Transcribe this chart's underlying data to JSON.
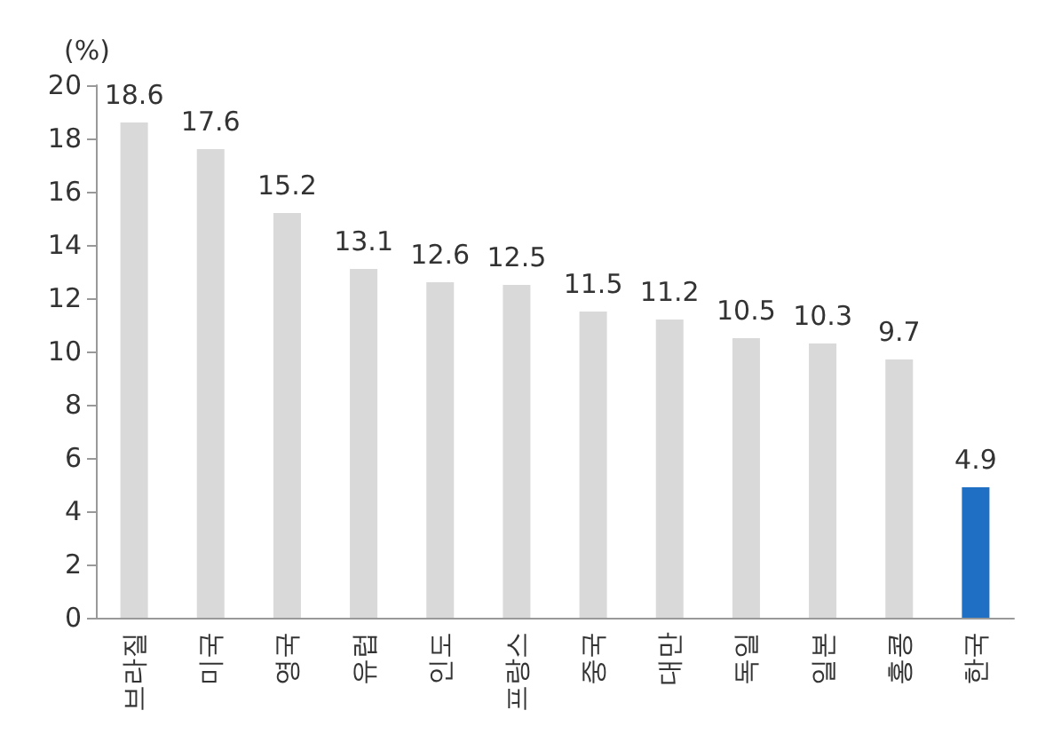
{
  "chart_data": {
    "type": "bar",
    "ylabel": "(%)",
    "categories": [
      "브라질",
      "미국",
      "영국",
      "유럽",
      "인도",
      "프랑스",
      "중국",
      "대만",
      "독일",
      "일본",
      "홍콩",
      "한국"
    ],
    "values": [
      18.6,
      17.6,
      15.2,
      13.1,
      12.6,
      12.5,
      11.5,
      11.2,
      10.5,
      10.3,
      9.7,
      4.9
    ],
    "colors": [
      "#d9d9d9",
      "#d9d9d9",
      "#d9d9d9",
      "#d9d9d9",
      "#d9d9d9",
      "#d9d9d9",
      "#d9d9d9",
      "#d9d9d9",
      "#d9d9d9",
      "#d9d9d9",
      "#d9d9d9",
      "#1f6fc5"
    ],
    "ylim": [
      0,
      20
    ],
    "yticks": [
      0,
      2,
      4,
      6,
      8,
      10,
      12,
      14,
      16,
      18,
      20
    ],
    "data_labels": true,
    "grid": false
  }
}
